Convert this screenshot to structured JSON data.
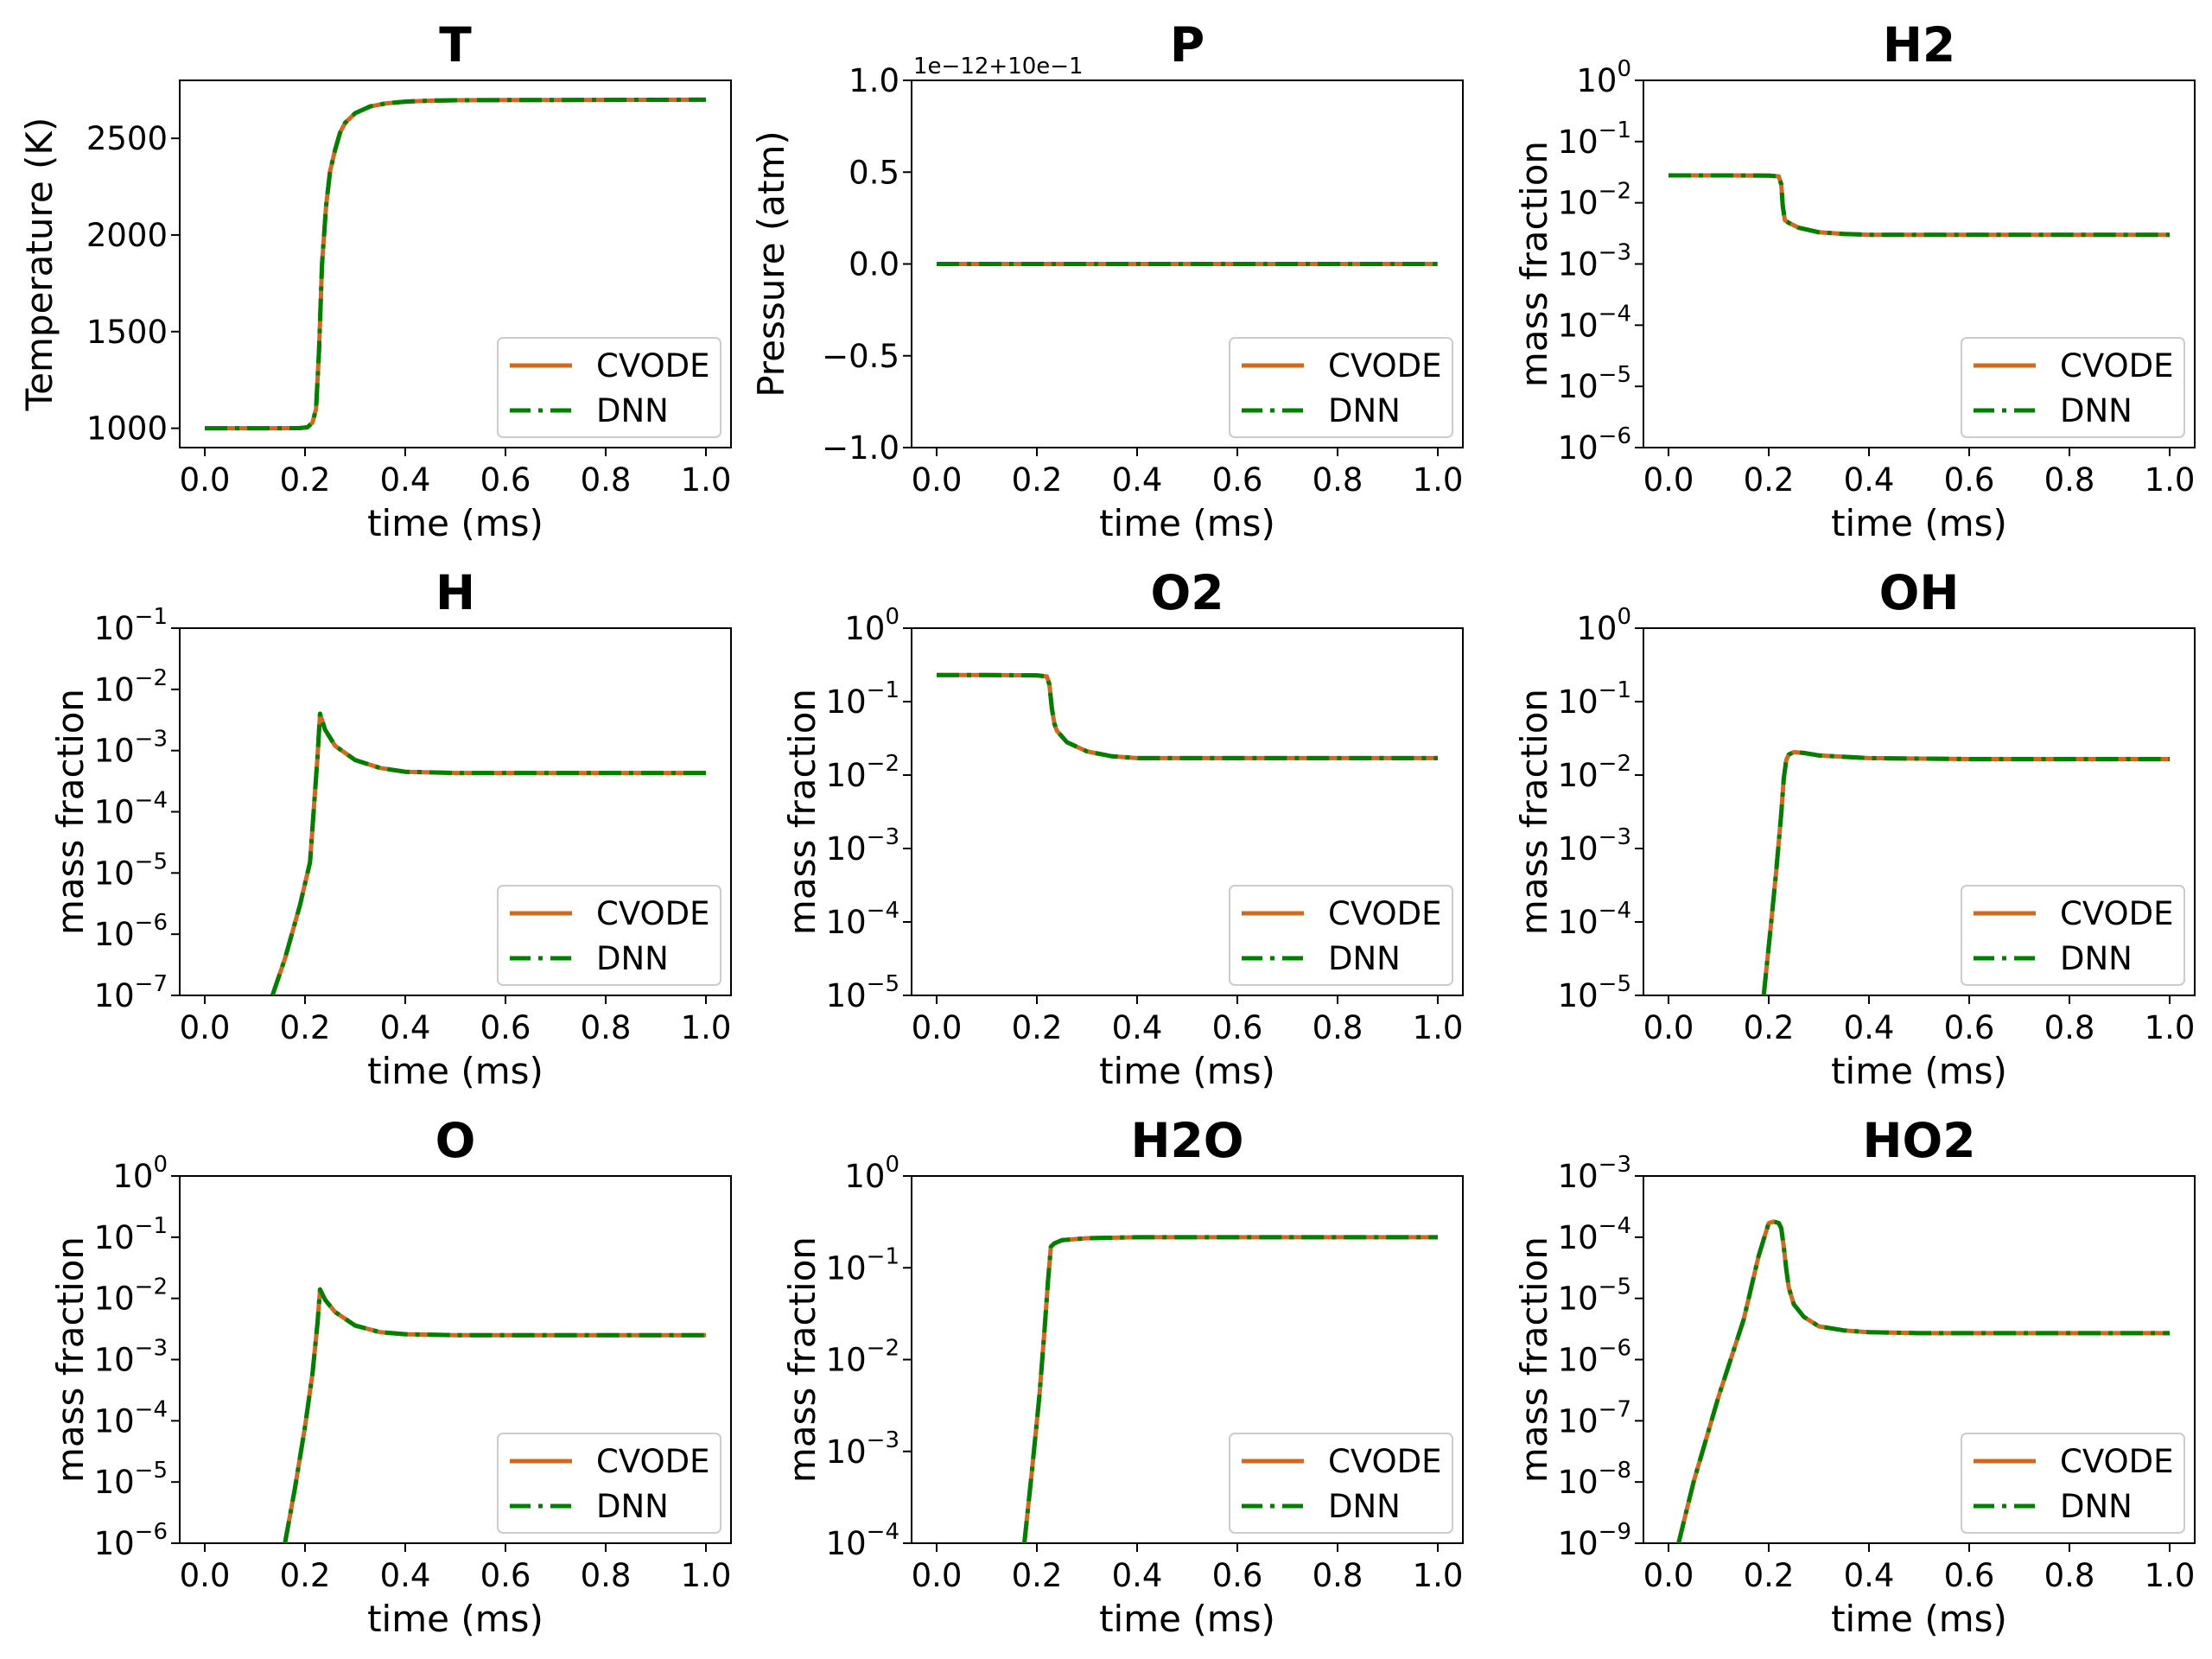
{
  "legend": {
    "cvode_label": "CVODE",
    "dnn_label": "DNN",
    "cvode_color": "#d2691e",
    "dnn_color": "#008000",
    "placement": "lower right"
  },
  "x_axis_label": "time (ms)",
  "x_ticks": [
    0.0,
    0.2,
    0.4,
    0.6,
    0.8,
    1.0
  ],
  "x_tick_labels": [
    "0.0",
    "0.2",
    "0.4",
    "0.6",
    "0.8",
    "1.0"
  ],
  "chart_data": [
    {
      "type": "line",
      "title": "T",
      "xlabel": "time (ms)",
      "ylabel": "Temperature (K)",
      "scale": "linear",
      "xlim": [
        -0.05,
        1.05
      ],
      "ylim": [
        900,
        2800
      ],
      "yticks": [
        1000,
        1500,
        2000,
        2500
      ],
      "ytick_labels": [
        "1000",
        "1500",
        "2000",
        "2500"
      ],
      "x": [
        0,
        0.05,
        0.1,
        0.15,
        0.19,
        0.205,
        0.215,
        0.222,
        0.228,
        0.234,
        0.242,
        0.25,
        0.26,
        0.27,
        0.28,
        0.3,
        0.33,
        0.36,
        0.4,
        0.45,
        0.5,
        0.6,
        0.8,
        1.0
      ],
      "series": [
        {
          "name": "CVODE",
          "values": [
            1000,
            1000,
            1000,
            1000,
            1001,
            1005,
            1030,
            1100,
            1400,
            1850,
            2150,
            2330,
            2440,
            2530,
            2580,
            2630,
            2665,
            2680,
            2690,
            2695,
            2697,
            2698,
            2699,
            2700
          ]
        },
        {
          "name": "DNN",
          "values": [
            1000,
            1000,
            1000,
            1000,
            1001,
            1005,
            1030,
            1100,
            1400,
            1850,
            2150,
            2330,
            2440,
            2530,
            2580,
            2630,
            2665,
            2680,
            2690,
            2695,
            2697,
            2698,
            2699,
            2700
          ]
        }
      ]
    },
    {
      "type": "line",
      "title": "P",
      "xlabel": "time (ms)",
      "ylabel": "Pressure (atm)",
      "scale": "linear",
      "xlim": [
        -0.05,
        1.05
      ],
      "ylim": [
        -1.0,
        1.0
      ],
      "yticks": [
        -1.0,
        -0.5,
        0.0,
        0.5,
        1.0
      ],
      "ytick_labels": [
        "−1.0",
        "−0.5",
        "0.0",
        "0.5",
        "1.0"
      ],
      "offset_text": "1e−12+10e−1",
      "x": [
        0,
        0.2,
        0.4,
        0.6,
        0.8,
        1.0
      ],
      "series": [
        {
          "name": "CVODE",
          "values": [
            0,
            0,
            0,
            0,
            0,
            0
          ]
        },
        {
          "name": "DNN",
          "values": [
            0,
            0,
            0,
            0,
            0,
            0
          ]
        }
      ]
    },
    {
      "type": "line",
      "title": "H2",
      "xlabel": "time (ms)",
      "ylabel": "mass fraction",
      "scale": "log",
      "xlim": [
        -0.05,
        1.05
      ],
      "ylim": [
        -6,
        0
      ],
      "yticks": [
        -6,
        -5,
        -4,
        -3,
        -2,
        -1,
        0
      ],
      "x": [
        0,
        0.1,
        0.2,
        0.22,
        0.225,
        0.228,
        0.232,
        0.24,
        0.26,
        0.3,
        0.35,
        0.4,
        0.5,
        0.7,
        1.0
      ],
      "series": [
        {
          "name": "CVODE",
          "values": [
            0.028,
            0.028,
            0.0278,
            0.027,
            0.02,
            0.009,
            0.0052,
            0.0047,
            0.0039,
            0.0033,
            0.0031,
            0.003,
            0.003,
            0.003,
            0.003
          ]
        },
        {
          "name": "DNN",
          "values": [
            0.028,
            0.028,
            0.0278,
            0.027,
            0.02,
            0.009,
            0.0052,
            0.0047,
            0.0039,
            0.0033,
            0.0031,
            0.003,
            0.003,
            0.003,
            0.003
          ]
        }
      ]
    },
    {
      "type": "line",
      "title": "H",
      "xlabel": "time (ms)",
      "ylabel": "mass fraction",
      "scale": "log",
      "xlim": [
        -0.05,
        1.05
      ],
      "ylim": [
        -7,
        -1
      ],
      "yticks": [
        -7,
        -6,
        -5,
        -4,
        -3,
        -2,
        -1
      ],
      "x": [
        0.135,
        0.16,
        0.19,
        0.21,
        0.225,
        0.23,
        0.24,
        0.26,
        0.3,
        0.35,
        0.4,
        0.5,
        0.7,
        1.0
      ],
      "series": [
        {
          "name": "CVODE",
          "values": [
            1e-07,
            4e-07,
            3e-06,
            1.5e-05,
            0.0008,
            0.004,
            0.0022,
            0.0012,
            0.0007,
            0.00052,
            0.00045,
            0.00043,
            0.00043,
            0.00043
          ]
        },
        {
          "name": "DNN",
          "values": [
            1e-07,
            4e-07,
            3e-06,
            1.5e-05,
            0.0008,
            0.004,
            0.0022,
            0.0012,
            0.0007,
            0.00052,
            0.00045,
            0.00043,
            0.00043,
            0.00043
          ]
        }
      ]
    },
    {
      "type": "line",
      "title": "O2",
      "xlabel": "time (ms)",
      "ylabel": "mass fraction",
      "scale": "log",
      "xlim": [
        -0.05,
        1.05
      ],
      "ylim": [
        -5,
        0
      ],
      "yticks": [
        -5,
        -4,
        -3,
        -2,
        -1,
        0
      ],
      "x": [
        0,
        0.1,
        0.2,
        0.22,
        0.225,
        0.23,
        0.235,
        0.24,
        0.26,
        0.3,
        0.35,
        0.4,
        0.5,
        0.7,
        1.0
      ],
      "series": [
        {
          "name": "CVODE",
          "values": [
            0.23,
            0.23,
            0.228,
            0.22,
            0.17,
            0.08,
            0.05,
            0.04,
            0.028,
            0.021,
            0.018,
            0.017,
            0.017,
            0.017,
            0.017
          ]
        },
        {
          "name": "DNN",
          "values": [
            0.23,
            0.23,
            0.228,
            0.22,
            0.17,
            0.08,
            0.05,
            0.04,
            0.028,
            0.021,
            0.018,
            0.017,
            0.017,
            0.017,
            0.017
          ]
        }
      ]
    },
    {
      "type": "line",
      "title": "OH",
      "xlabel": "time (ms)",
      "ylabel": "mass fraction",
      "scale": "log",
      "xlim": [
        -0.05,
        1.05
      ],
      "ylim": [
        -5,
        0
      ],
      "yticks": [
        -5,
        -4,
        -3,
        -2,
        -1,
        0
      ],
      "x": [
        0.19,
        0.205,
        0.215,
        0.225,
        0.23,
        0.235,
        0.24,
        0.25,
        0.27,
        0.3,
        0.4,
        0.6,
        1.0
      ],
      "series": [
        {
          "name": "CVODE",
          "values": [
            1e-05,
            0.0001,
            0.0005,
            0.003,
            0.009,
            0.016,
            0.019,
            0.0205,
            0.02,
            0.0185,
            0.017,
            0.0165,
            0.0165
          ]
        },
        {
          "name": "DNN",
          "values": [
            1e-05,
            0.0001,
            0.0005,
            0.003,
            0.009,
            0.016,
            0.019,
            0.0205,
            0.02,
            0.0185,
            0.017,
            0.0165,
            0.0165
          ]
        }
      ]
    },
    {
      "type": "line",
      "title": "O",
      "xlabel": "time (ms)",
      "ylabel": "mass fraction",
      "scale": "log",
      "xlim": [
        -0.05,
        1.05
      ],
      "ylim": [
        -6,
        0
      ],
      "yticks": [
        -6,
        -5,
        -4,
        -3,
        -2,
        -1,
        0
      ],
      "x": [
        0.16,
        0.18,
        0.2,
        0.215,
        0.225,
        0.23,
        0.24,
        0.26,
        0.3,
        0.35,
        0.4,
        0.5,
        0.7,
        1.0
      ],
      "series": [
        {
          "name": "CVODE",
          "values": [
            1e-06,
            8e-06,
            8e-05,
            0.0006,
            0.004,
            0.014,
            0.0095,
            0.006,
            0.0036,
            0.0028,
            0.0026,
            0.0025,
            0.0025,
            0.0025
          ]
        },
        {
          "name": "DNN",
          "values": [
            1e-06,
            8e-06,
            8e-05,
            0.0006,
            0.004,
            0.014,
            0.0095,
            0.006,
            0.0036,
            0.0028,
            0.0026,
            0.0025,
            0.0025,
            0.0025
          ]
        }
      ]
    },
    {
      "type": "line",
      "title": "H2O",
      "xlabel": "time (ms)",
      "ylabel": "mass fraction",
      "scale": "log",
      "xlim": [
        -0.05,
        1.05
      ],
      "ylim": [
        -4,
        0
      ],
      "yticks": [
        -4,
        -3,
        -2,
        -1,
        0
      ],
      "x": [
        0.175,
        0.19,
        0.205,
        0.215,
        0.222,
        0.228,
        0.235,
        0.25,
        0.3,
        0.4,
        0.5,
        0.7,
        1.0
      ],
      "series": [
        {
          "name": "CVODE",
          "values": [
            0.0001,
            0.0006,
            0.004,
            0.02,
            0.07,
            0.17,
            0.185,
            0.2,
            0.21,
            0.215,
            0.215,
            0.215,
            0.215
          ]
        },
        {
          "name": "DNN",
          "values": [
            0.0001,
            0.0006,
            0.004,
            0.02,
            0.07,
            0.17,
            0.185,
            0.2,
            0.21,
            0.215,
            0.215,
            0.215,
            0.215
          ]
        }
      ]
    },
    {
      "type": "line",
      "title": "HO2",
      "xlabel": "time (ms)",
      "ylabel": "mass fraction",
      "scale": "log",
      "xlim": [
        -0.05,
        1.05
      ],
      "ylim": [
        -9,
        -3
      ],
      "yticks": [
        -9,
        -8,
        -7,
        -6,
        -5,
        -4,
        -3
      ],
      "x": [
        0.02,
        0.05,
        0.1,
        0.15,
        0.18,
        0.2,
        0.21,
        0.22,
        0.225,
        0.23,
        0.235,
        0.24,
        0.25,
        0.27,
        0.3,
        0.35,
        0.4,
        0.5,
        0.7,
        1.0
      ],
      "series": [
        {
          "name": "CVODE",
          "values": [
            1e-09,
            1e-08,
            2.5e-07,
            4.5e-06,
            5e-05,
            0.00017,
            0.00018,
            0.00017,
            0.00014,
            7e-05,
            3e-05,
            1.5e-05,
            8e-06,
            5e-06,
            3.5e-06,
            3e-06,
            2.8e-06,
            2.7e-06,
            2.7e-06,
            2.7e-06
          ]
        },
        {
          "name": "DNN",
          "values": [
            1e-09,
            1e-08,
            2.5e-07,
            4.5e-06,
            5e-05,
            0.00017,
            0.00018,
            0.00017,
            0.00014,
            7e-05,
            3e-05,
            1.5e-05,
            8e-06,
            5e-06,
            3.5e-06,
            3e-06,
            2.8e-06,
            2.7e-06,
            2.7e-06,
            2.7e-06
          ]
        }
      ]
    }
  ]
}
